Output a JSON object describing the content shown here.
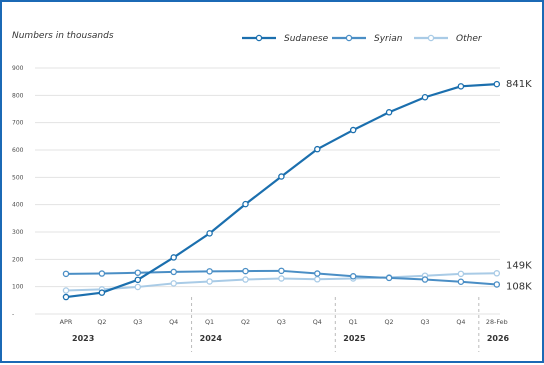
{
  "chart_data": {
    "type": "line",
    "subtitle": "Numbers in thousands",
    "categories": [
      "APR",
      "Q2",
      "Q3",
      "Q4",
      "Q1",
      "Q2",
      "Q3",
      "Q4",
      "Q1",
      "Q2",
      "Q3",
      "Q4",
      "28-Feb"
    ],
    "year_groups": [
      {
        "year": "2023",
        "from": 0,
        "to": 3
      },
      {
        "year": "2024",
        "from": 4,
        "to": 7
      },
      {
        "year": "2025",
        "from": 8,
        "to": 11
      },
      {
        "year": "2026",
        "from": 12,
        "to": 12
      }
    ],
    "y_ticks": [
      "-",
      "100",
      "200",
      "300",
      "400",
      "500",
      "600",
      "700",
      "800",
      "900"
    ],
    "ylim": [
      0,
      900
    ],
    "grid": true,
    "legend_position": "top-right",
    "series": [
      {
        "name": "Sudanese",
        "color": "#1b6fae",
        "end_label": "841K",
        "values": [
          62,
          78,
          125,
          207,
          295,
          402,
          503,
          603,
          673,
          738,
          793,
          833,
          841
        ]
      },
      {
        "name": "Syrian",
        "color": "#4a8ec5",
        "end_label": "108K",
        "values": [
          147,
          148,
          151,
          154,
          156,
          157,
          158,
          148,
          138,
          132,
          126,
          118,
          108
        ]
      },
      {
        "name": "Other",
        "color": "#a9cbe6",
        "end_label": "149K",
        "values": [
          86,
          90,
          99,
          112,
          119,
          126,
          130,
          127,
          130,
          134,
          140,
          147,
          149
        ]
      }
    ]
  }
}
